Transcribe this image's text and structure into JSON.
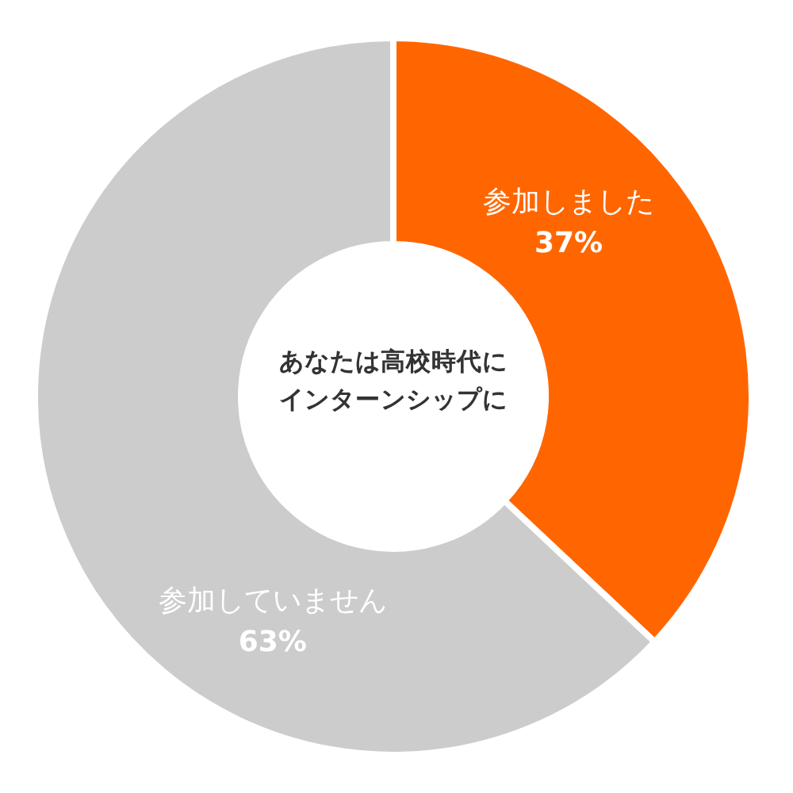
{
  "chart_data": {
    "type": "donut",
    "title": "あなたは高校時代にインターンシップに",
    "categories": [
      "参加しました",
      "参加していません"
    ],
    "values": [
      37,
      63
    ],
    "colors": [
      "#ff6600",
      "#cccccc"
    ],
    "value_labels": [
      "37%",
      "63%"
    ]
  }
}
